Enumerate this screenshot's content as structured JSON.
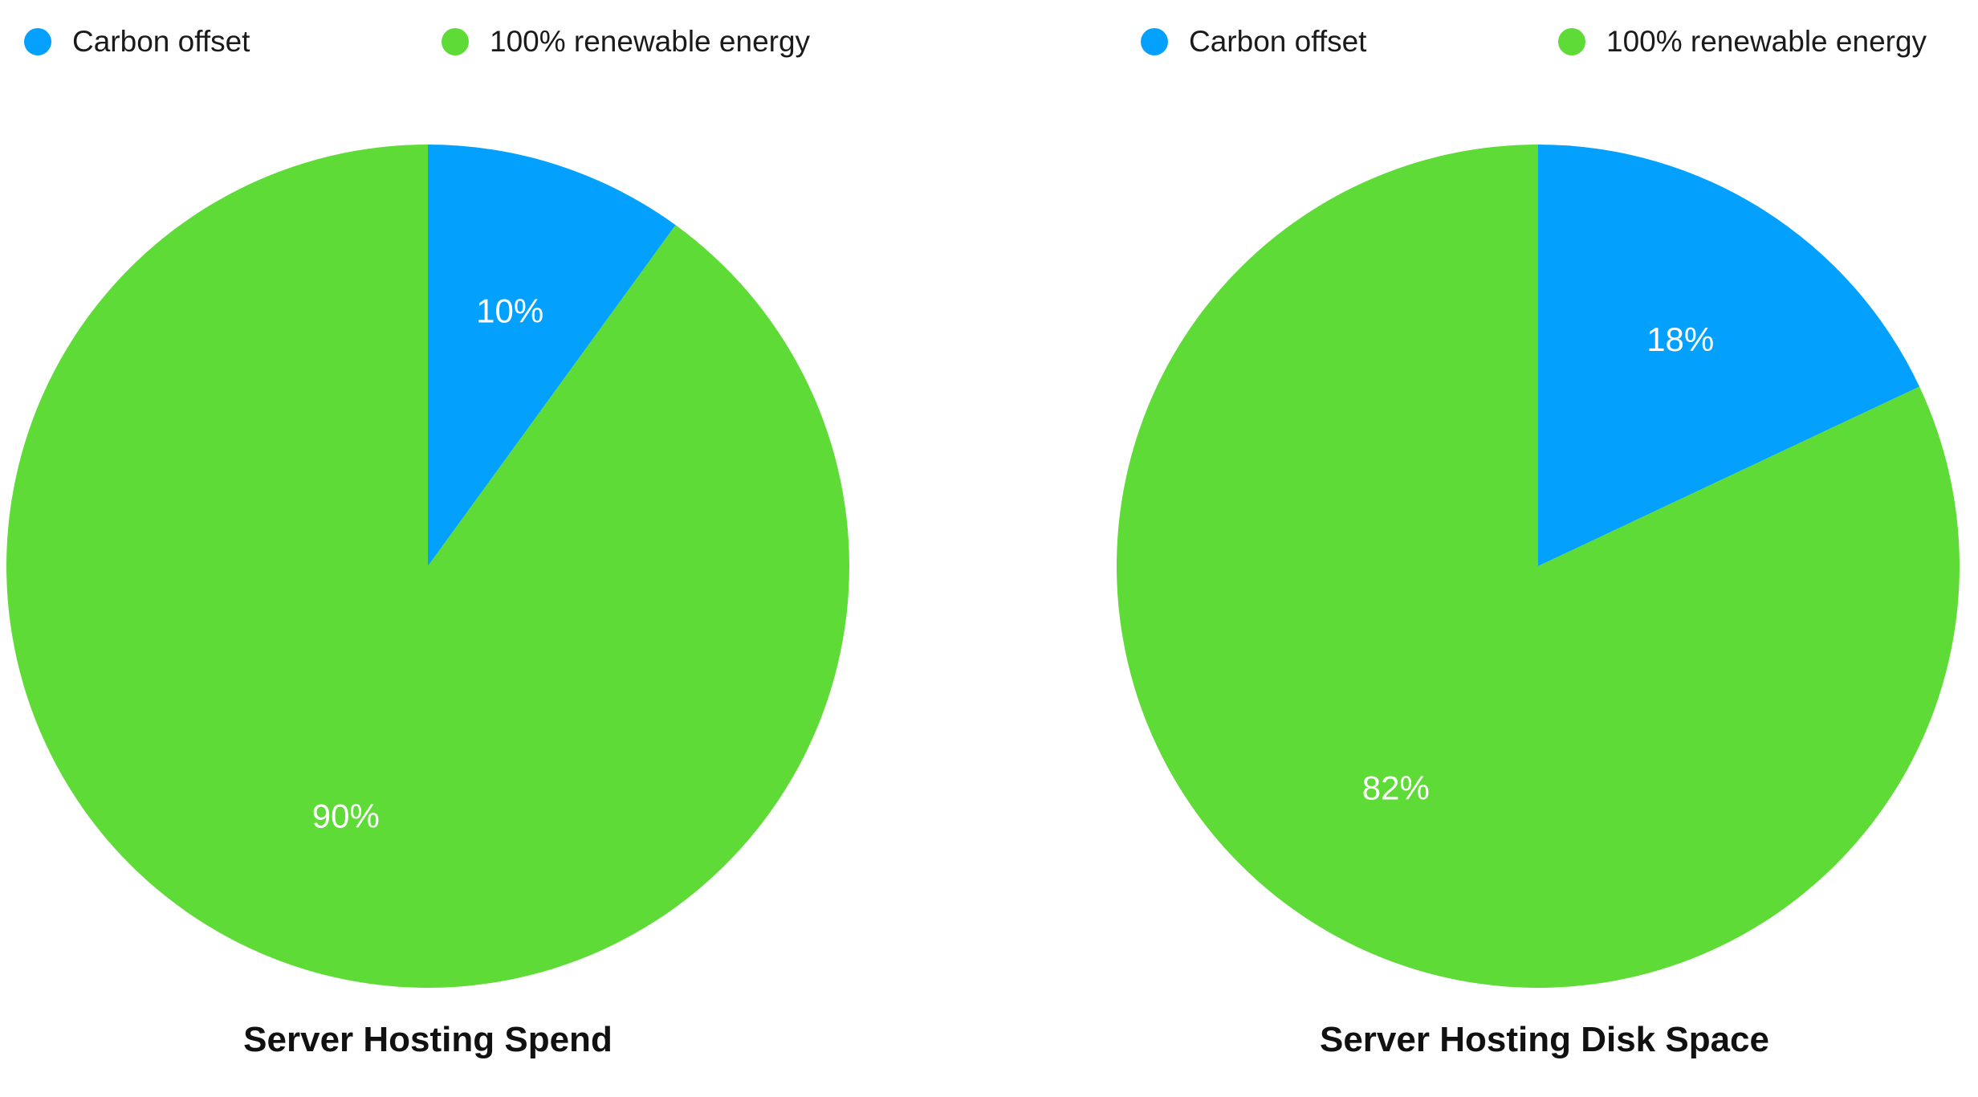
{
  "chart_data": [
    {
      "type": "pie",
      "title": "Server Hosting Spend",
      "legend": [
        "Carbon offset",
        "100% renewable energy"
      ],
      "colors": [
        "#03a1fd",
        "#5fdb37"
      ],
      "slices": [
        {
          "name": "Carbon offset",
          "value": 10,
          "label": "10%"
        },
        {
          "name": "100% renewable energy",
          "value": 90,
          "label": "90%"
        }
      ]
    },
    {
      "type": "pie",
      "title": "Server Hosting Disk Space",
      "legend": [
        "Carbon offset",
        "100% renewable energy"
      ],
      "colors": [
        "#03a1fd",
        "#5fdb37"
      ],
      "slices": [
        {
          "name": "Carbon offset",
          "value": 18,
          "label": "18%"
        },
        {
          "name": "100% renewable energy",
          "value": 82,
          "label": "82%"
        }
      ]
    }
  ]
}
